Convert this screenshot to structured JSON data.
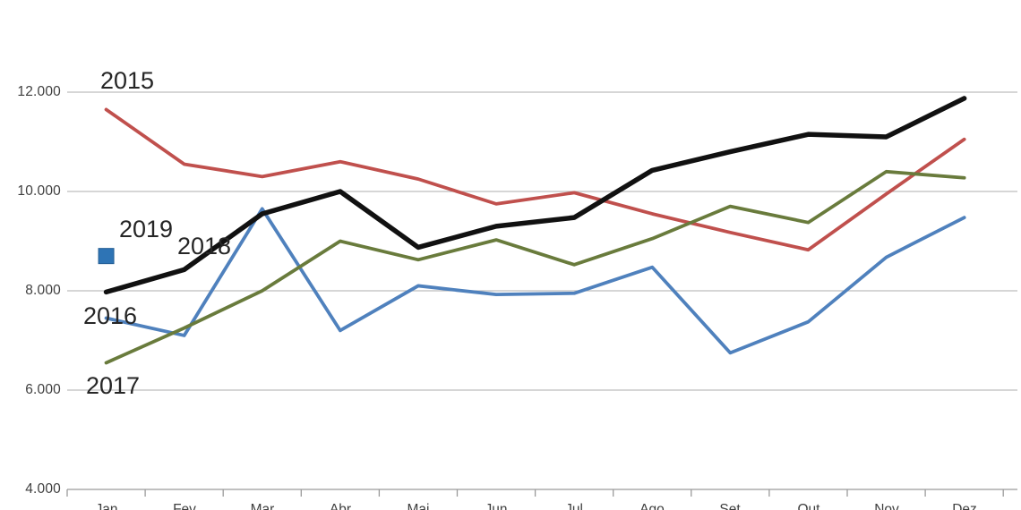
{
  "chart_data": {
    "type": "line",
    "title": "",
    "xlabel": "",
    "ylabel": "",
    "categories": [
      "Jan",
      "Fev",
      "Mar",
      "Abr",
      "Mai",
      "Jun",
      "Jul",
      "Ago",
      "Set",
      "Out",
      "Nov",
      "Dez"
    ],
    "y_axis": {
      "min": 4000,
      "max": 12000,
      "step": 2000,
      "gridline_values": [
        12000,
        10000,
        8000,
        6000
      ],
      "tick_labels": [
        "12.000",
        "10.000",
        "8.000",
        "6.000",
        "4.000"
      ],
      "number_format": "thousands-dot-separator"
    },
    "grid": "horizontal",
    "legend_position": "inline-labels-near-series",
    "colors": {
      "gridline": "#BDBDBD",
      "axis": "#9A9A9A",
      "label_text": "#262626",
      "tick_text": "#3F3F3F"
    },
    "series": [
      {
        "name": "2015",
        "color": "#C0504D",
        "stroke_width": 3.8,
        "values": [
          11650,
          10550,
          10300,
          10600,
          10250,
          9750,
          9975,
          9550,
          9175,
          8825,
          9950,
          11050
        ]
      },
      {
        "name": "2016",
        "color": "#4F81BD",
        "stroke_width": 3.8,
        "values": [
          7450,
          7100,
          9650,
          7200,
          8100,
          7925,
          7950,
          8475,
          6750,
          7375,
          8675,
          9475
        ]
      },
      {
        "name": "2017",
        "color": "#697B3C",
        "stroke_width": 3.8,
        "values": [
          6550,
          7250,
          8000,
          9000,
          8625,
          9025,
          8525,
          9050,
          9700,
          9375,
          10400,
          10275
        ]
      },
      {
        "name": "2018",
        "color": "#111111",
        "stroke_width": 5.5,
        "values": [
          7975,
          8425,
          9550,
          10000,
          8875,
          9300,
          9475,
          10425,
          10800,
          11150,
          11100,
          11875
        ]
      },
      {
        "name": "2019",
        "color": "#2E74B5",
        "marker": "square",
        "marker_border": "#255E94",
        "line": false,
        "values": [
          8700
        ]
      }
    ]
  }
}
